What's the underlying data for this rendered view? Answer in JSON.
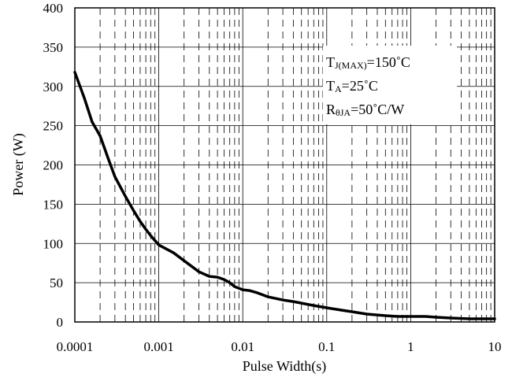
{
  "chart_data": {
    "type": "line",
    "title": "",
    "xlabel": "Pulse Width(s)",
    "ylabel": "Power (W)",
    "x_scale": "log",
    "xlim": [
      0.0001,
      10
    ],
    "ylim": [
      0,
      400
    ],
    "x_ticks": [
      0.0001,
      0.001,
      0.01,
      0.1,
      1,
      10
    ],
    "x_tick_labels": [
      "0.0001",
      "0.001",
      "0.01",
      "0.1",
      "1",
      "10"
    ],
    "y_ticks": [
      0,
      50,
      100,
      150,
      200,
      250,
      300,
      350,
      400
    ],
    "y_tick_labels": [
      "0",
      "50",
      "100",
      "150",
      "200",
      "250",
      "300",
      "350",
      "400"
    ],
    "grid": true,
    "minor_grid_style": "dashed",
    "series": [
      {
        "color": "#000000",
        "x": [
          0.0001,
          0.00013,
          0.00016,
          0.0002,
          0.00025,
          0.0003,
          0.0004,
          0.0005,
          0.0006,
          0.0007,
          0.0008,
          0.001,
          0.0015,
          0.002,
          0.003,
          0.004,
          0.005,
          0.006,
          0.007,
          0.008,
          0.01,
          0.012,
          0.015,
          0.02,
          0.03,
          0.04,
          0.05,
          0.07,
          0.1,
          0.15,
          0.2,
          0.3,
          0.5,
          0.7,
          1,
          1.5,
          2,
          3,
          5,
          10
        ],
        "y": [
          318,
          285,
          255,
          237,
          208,
          185,
          160,
          142,
          128,
          118,
          110,
          98,
          88,
          78,
          64,
          58,
          57,
          54,
          50,
          45,
          41,
          40,
          37,
          32,
          28,
          26,
          24,
          21,
          18,
          15,
          13,
          10,
          8,
          7,
          7,
          7,
          6,
          5,
          4,
          4
        ]
      }
    ],
    "annotation": {
      "lines": [
        {
          "main": "T",
          "sub": "J(MAX)",
          "rest": "=150˚C"
        },
        {
          "main": "T",
          "sub": "A",
          "rest": "=25˚C"
        },
        {
          "main": "R",
          "sub": "θJA",
          "rest": "=50˚C/W"
        }
      ]
    }
  }
}
